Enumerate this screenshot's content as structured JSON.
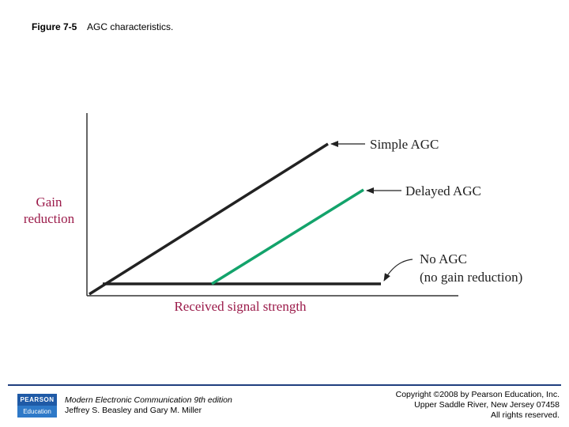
{
  "caption": {
    "figure": "Figure 7-5",
    "text": "AGC characteristics."
  },
  "diagram": {
    "y_label_line1": "Gain",
    "y_label_line2": "reduction",
    "x_label": "Received signal strength",
    "curve_labels": {
      "simple": "Simple AGC",
      "delayed": "Delayed AGC",
      "no_agc_line1": "No AGC",
      "no_agc_line2": "(no gain reduction)"
    },
    "colors": {
      "axis_label": "#9b1b4a",
      "delayed_line": "#13a36b",
      "lines": "#222222"
    }
  },
  "footer": {
    "logo_top": "PEARSON",
    "logo_bottom": "Education",
    "book_title": "Modern Electronic Communication 9th edition",
    "authors": "Jeffrey S. Beasley and Gary M. Miller",
    "copyright_line1": "Copyright ©2008 by Pearson Education, Inc.",
    "copyright_line2": "Upper Saddle River, New Jersey 07458",
    "copyright_line3": "All rights reserved."
  }
}
